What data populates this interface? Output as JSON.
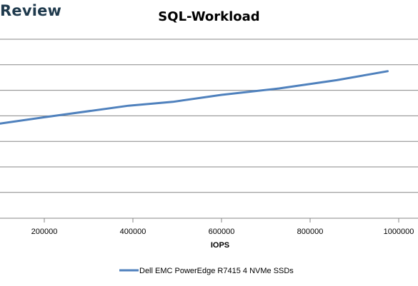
{
  "brand": "Review",
  "chart_data": {
    "type": "line",
    "title": "SQL-Workload",
    "xlabel": "IOPS",
    "ylabel": "",
    "xlim": [
      100000,
      1000000
    ],
    "xticks": [
      200000,
      400000,
      600000,
      800000,
      1000000
    ],
    "grid": true,
    "legend_position": "bottom",
    "series": [
      {
        "name": "Dell EMC PowerEdge R7415 4 NVMe SSDs",
        "color": "#4f81bd",
        "points": [
          {
            "x": 100000,
            "y": 0.74
          },
          {
            "x": 200000,
            "y": 0.79
          },
          {
            "x": 390000,
            "y": 0.88
          },
          {
            "x": 490000,
            "y": 0.91
          },
          {
            "x": 600000,
            "y": 0.965
          },
          {
            "x": 730000,
            "y": 1.015
          },
          {
            "x": 860000,
            "y": 1.08
          },
          {
            "x": 975000,
            "y": 1.15
          }
        ]
      }
    ]
  }
}
